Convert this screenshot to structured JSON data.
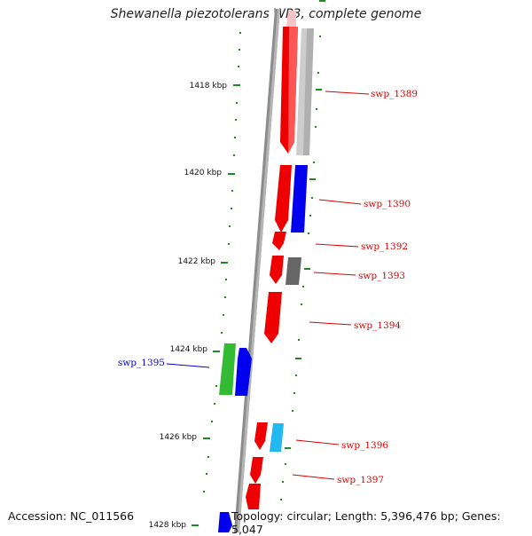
{
  "title": "Shewanella piezotolerans WP3, complete genome",
  "accession_text": "Accession: NC_011566",
  "topology_text": "Topology: circular; Length: 5,396,476 bp; Genes: 5,047",
  "colors": {
    "backbone": "#888888",
    "tick_green": "#1f8a1f",
    "label_red": "#dd0000",
    "label_blue": "#0000cc",
    "gene_red": "#ee0000",
    "gene_blue": "#0000ee",
    "gene_grey_light": "#c8c8c8",
    "gene_grey_dark": "#666666",
    "gene_green": "#33bb33",
    "gene_cyan": "#22b8f0"
  },
  "position_labels": [
    "1418 kbp",
    "1420 kbp",
    "1422 kbp",
    "1424 kbp",
    "1426 kbp",
    "1428 kbp"
  ],
  "gene_labels": [
    {
      "name": "swp_1389",
      "color": "red"
    },
    {
      "name": "swp_1390",
      "color": "red"
    },
    {
      "name": "swp_1392",
      "color": "red"
    },
    {
      "name": "swp_1393",
      "color": "red"
    },
    {
      "name": "swp_1394",
      "color": "red"
    },
    {
      "name": "swp_1395",
      "color": "blue"
    },
    {
      "name": "swp_1396",
      "color": "red"
    },
    {
      "name": "swp_1397",
      "color": "red"
    }
  ]
}
